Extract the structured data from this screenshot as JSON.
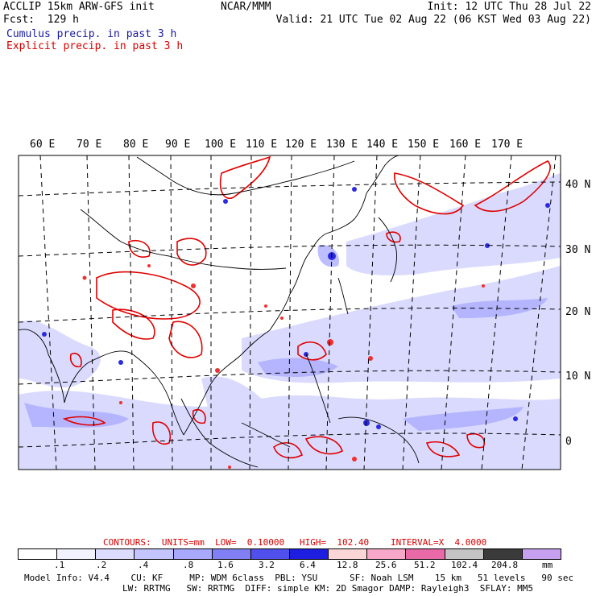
{
  "header": {
    "model_title": "ACCLIP 15km ARW-GFS init",
    "forecast": "Fcst:  129 h",
    "center": "NCAR/MMM",
    "init": "Init: 12 UTC Thu 28 Jul 22",
    "valid": "Valid: 21 UTC Tue 02 Aug 22 (06 KST Wed 03 Aug 22)",
    "legend_cumulus": "Cumulus precip. in past 3 h",
    "legend_explicit": "Explicit precip. in past 3 h"
  },
  "colors": {
    "cumulus": "#1a1aa0",
    "explicit": "#d40000",
    "shade_levels": [
      "#ffffff",
      "#f2f2ff",
      "#dcdcff",
      "#c4c4ff",
      "#a8a8ff",
      "#8080f4",
      "#5050ee",
      "#1e1ee0",
      "#fcd6d6",
      "#f7a8c8",
      "#e86aa6",
      "#c4c4c4",
      "#3a3a3a",
      "#c8a0f0"
    ]
  },
  "map": {
    "lon_labels": [
      "60 E",
      "70 E",
      "80 E",
      "90 E",
      "100 E",
      "110 E",
      "120 E",
      "130 E",
      "140 E",
      "150 E",
      "160 E",
      "170 E"
    ],
    "lat_labels": [
      "40 N",
      "30 N",
      "20 N",
      "10 N",
      "0"
    ]
  },
  "contours": {
    "label": "CONTOURS:  UNITS=mm  LOW=  0.10000",
    "high": "HIGH=  102.40",
    "interval": "INTERVAL=X  4.0000"
  },
  "colorbar": {
    "tick_labels": [
      ".1",
      ".2",
      ".4",
      ".8",
      "1.6",
      "3.2",
      "6.4",
      "12.8",
      "25.6",
      "51.2",
      "102.4",
      "204.8"
    ],
    "units": "mm"
  },
  "footer": {
    "line1": "Model Info: V4.4    CU: KF     MP: WDM 6class  PBL: YSU      SF: Noah LSM    15 km   51 levels   90 sec",
    "line2": "LW: RRTMG   SW: RRTMG  DIFF: simple KM: 2D Smagor DAMP: Rayleigh3  SFLAY: MM5"
  }
}
